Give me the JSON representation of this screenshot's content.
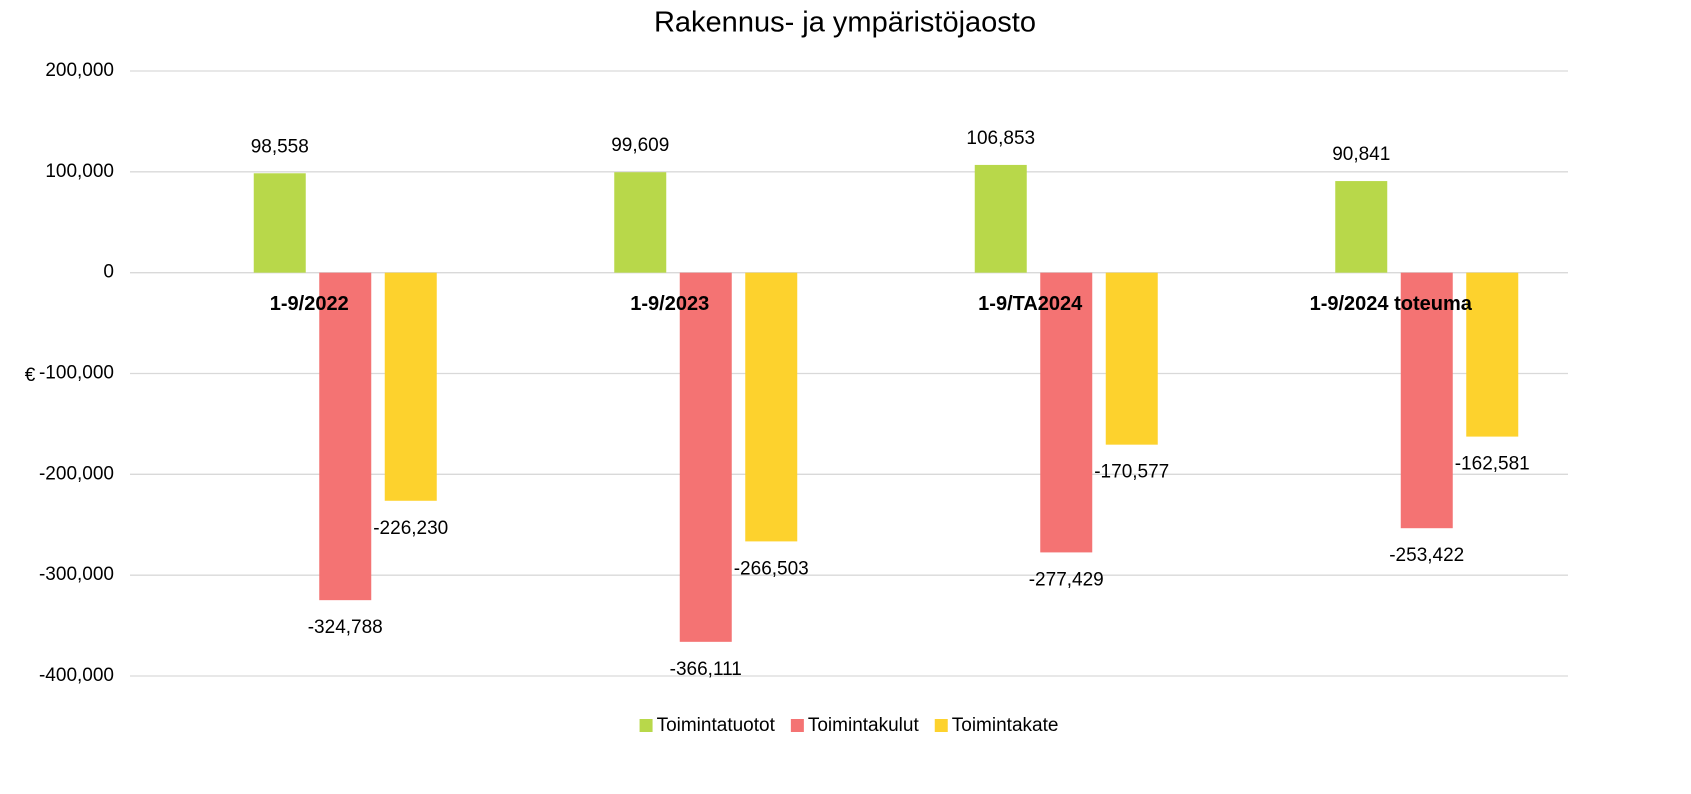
{
  "chart_data": {
    "type": "bar",
    "title": "Rakennus- ja ympäristöjaosto",
    "y_label": "€",
    "categories": [
      "1-9/2022",
      "1-9/2023",
      "1-9/TA2024",
      "1-9/2024 toteuma"
    ],
    "series": [
      {
        "name": "Toimintatuotot",
        "color": "#b8d84a",
        "values": [
          98558,
          99609,
          106853,
          90841
        ],
        "value_labels": [
          "98,558",
          "99,609",
          "106,853",
          "90,841"
        ]
      },
      {
        "name": "Toimintakulut",
        "color": "#f47373",
        "values": [
          -324788,
          -366111,
          -277429,
          -253422
        ],
        "value_labels": [
          "-324,788",
          "-366,111",
          "-277,429",
          "-253,422"
        ]
      },
      {
        "name": "Toimintakate",
        "color": "#fdd22d",
        "values": [
          -226230,
          -266503,
          -170577,
          -162581
        ],
        "value_labels": [
          "-226,230",
          "-266,503",
          "-170,577",
          "-162,581"
        ]
      }
    ],
    "ylim": [
      -400000,
      200000
    ],
    "yticks": [
      {
        "value": -400000,
        "label": "-400,000"
      },
      {
        "value": -300000,
        "label": "-300,000"
      },
      {
        "value": -200000,
        "label": "-200,000"
      },
      {
        "value": -100000,
        "label": "-100,000"
      },
      0,
      {
        "value": 100000,
        "label": "100,000"
      },
      {
        "value": 200000,
        "label": "200,000"
      }
    ],
    "grid": true,
    "legend": "bottom"
  }
}
